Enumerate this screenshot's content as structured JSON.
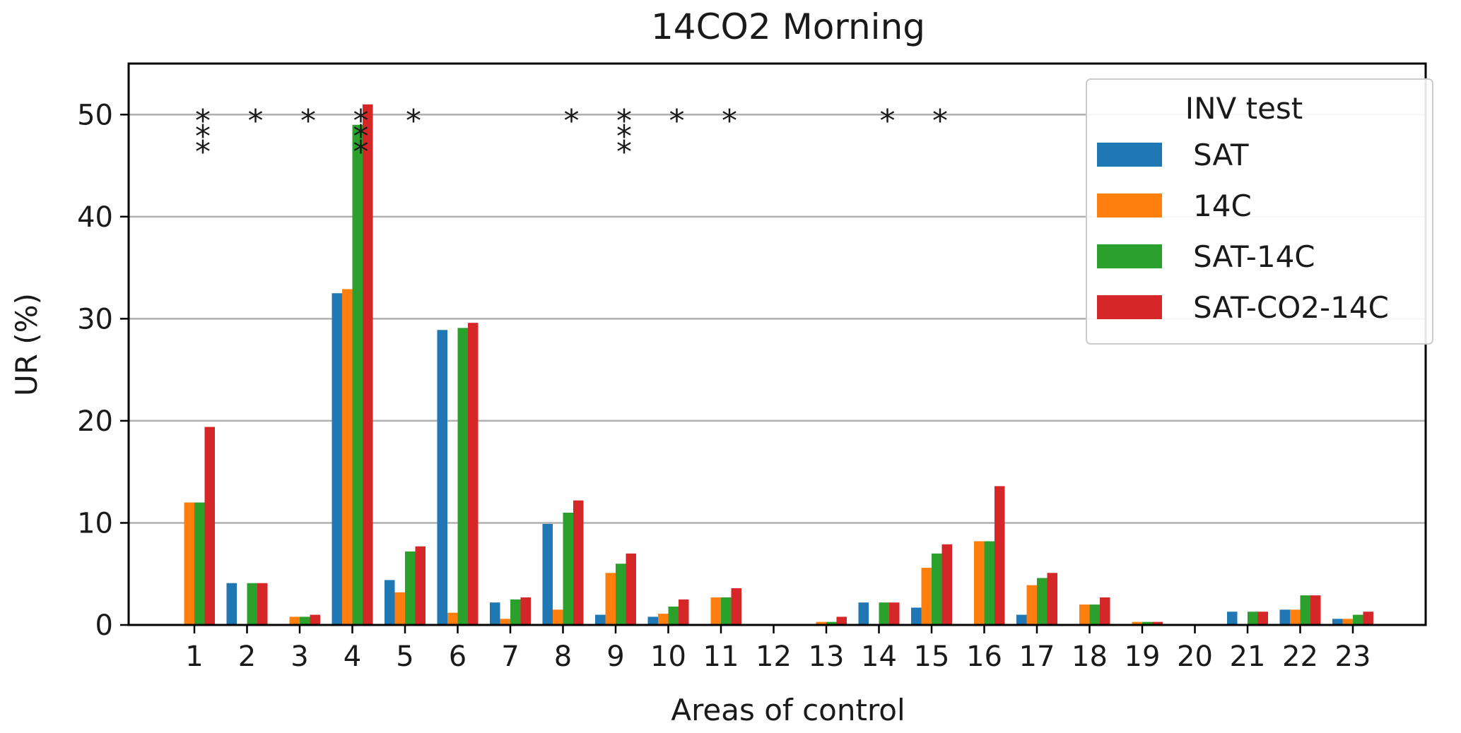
{
  "chart_data": {
    "type": "bar",
    "title": "14CO2 Morning",
    "xlabel": "Areas of control",
    "ylabel": "UR (%)",
    "ylim": [
      0,
      55
    ],
    "yticks": [
      0,
      10,
      20,
      30,
      40,
      50
    ],
    "grid": "horizontal",
    "categories": [
      "1",
      "2",
      "3",
      "4",
      "5",
      "6",
      "7",
      "8",
      "9",
      "10",
      "11",
      "12",
      "13",
      "14",
      "15",
      "16",
      "17",
      "18",
      "19",
      "20",
      "21",
      "22",
      "23"
    ],
    "legend": {
      "title": "INV test",
      "position": "top-right"
    },
    "series": [
      {
        "name": "SAT",
        "color": "#1f77b4",
        "values": [
          0,
          4.1,
          0,
          32.5,
          4.4,
          28.9,
          2.2,
          9.9,
          1.0,
          0.8,
          0,
          0,
          0,
          2.2,
          1.7,
          0,
          1.0,
          0,
          0,
          0,
          1.3,
          1.5,
          0.6
        ]
      },
      {
        "name": "14C",
        "color": "#ff7f0e",
        "values": [
          12.0,
          0,
          0.8,
          32.9,
          3.2,
          1.2,
          0.6,
          1.5,
          5.1,
          1.1,
          2.7,
          0,
          0.3,
          0,
          5.6,
          8.2,
          3.9,
          2.0,
          0.3,
          0,
          0,
          1.5,
          0.6
        ]
      },
      {
        "name": "SAT-14C",
        "color": "#2ca02c",
        "values": [
          12.0,
          4.1,
          0.8,
          49.0,
          7.2,
          29.1,
          2.5,
          11.0,
          6.0,
          1.8,
          2.7,
          0,
          0.3,
          2.2,
          7.0,
          8.2,
          4.6,
          2.0,
          0.3,
          0,
          1.3,
          2.9,
          1.0
        ]
      },
      {
        "name": "SAT-CO2-14C",
        "color": "#d62728",
        "values": [
          19.4,
          4.1,
          1.0,
          51.0,
          7.7,
          29.6,
          2.7,
          12.2,
          7.0,
          2.5,
          3.6,
          0,
          0.8,
          2.2,
          7.9,
          13.6,
          5.1,
          2.7,
          0.3,
          0,
          1.3,
          2.9,
          1.3
        ]
      }
    ],
    "annotations": [
      {
        "category": "1",
        "text": "***"
      },
      {
        "category": "2",
        "text": "*"
      },
      {
        "category": "3",
        "text": "*"
      },
      {
        "category": "4",
        "text": "***"
      },
      {
        "category": "5",
        "text": "*"
      },
      {
        "category": "8",
        "text": "*"
      },
      {
        "category": "9",
        "text": "***"
      },
      {
        "category": "10",
        "text": "*"
      },
      {
        "category": "11",
        "text": "*"
      },
      {
        "category": "14",
        "text": "*"
      },
      {
        "category": "15",
        "text": "*"
      }
    ]
  }
}
